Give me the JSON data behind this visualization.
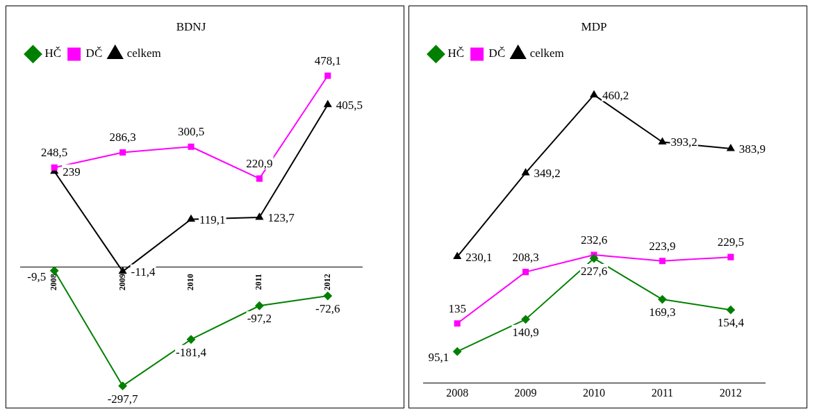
{
  "chart_data": [
    {
      "type": "line",
      "title": "BDNJ",
      "categories": [
        "2008",
        "2009",
        "2010",
        "2011",
        "2012"
      ],
      "tick_labels": "x",
      "legend": "top left",
      "grid": false,
      "series": [
        {
          "name": "HČ",
          "color": "#008000",
          "marker": "diamond",
          "values": [
            -9.5,
            -297.7,
            -181.4,
            -97.2,
            -72.6
          ],
          "value_labels": [
            "-9,5",
            "-297,7",
            "-181,4",
            "-97,2",
            "-72,6"
          ]
        },
        {
          "name": "DČ",
          "color": "#ff00ff",
          "marker": "square",
          "values": [
            248.5,
            286.3,
            300.5,
            220.9,
            478.1
          ],
          "value_labels": [
            "248,5",
            "286,3",
            "300,5",
            "220,9",
            "478,1"
          ]
        },
        {
          "name": "celkem",
          "color": "#000000",
          "marker": "triangle",
          "values": [
            239,
            -11.4,
            119.1,
            123.7,
            405.5
          ],
          "value_labels": [
            "239",
            "-11,4",
            "119,1",
            "123,7",
            "405,5"
          ]
        }
      ]
    },
    {
      "type": "line",
      "title": "MDP",
      "categories": [
        "2008",
        "2009",
        "2010",
        "2011",
        "2012"
      ],
      "tick_labels": "x",
      "legend": "top left",
      "grid": false,
      "series": [
        {
          "name": "HČ",
          "color": "#008000",
          "marker": "diamond",
          "values": [
            95.1,
            140.9,
            227.6,
            169.3,
            154.4
          ],
          "value_labels": [
            "95,1",
            "140,9",
            "227,6",
            "169,3",
            "154,4"
          ]
        },
        {
          "name": "DČ",
          "color": "#ff00ff",
          "marker": "square",
          "values": [
            135,
            208.3,
            232.6,
            223.9,
            229.5
          ],
          "value_labels": [
            "135",
            "208,3",
            "232,6",
            "223,9",
            "229,5"
          ]
        },
        {
          "name": "celkem",
          "color": "#000000",
          "marker": "triangle",
          "values": [
            230.1,
            349.2,
            460.2,
            393.2,
            383.9
          ],
          "value_labels": [
            "230,1",
            "349,2",
            "460,2",
            "393,2",
            "383,9"
          ]
        }
      ]
    }
  ]
}
